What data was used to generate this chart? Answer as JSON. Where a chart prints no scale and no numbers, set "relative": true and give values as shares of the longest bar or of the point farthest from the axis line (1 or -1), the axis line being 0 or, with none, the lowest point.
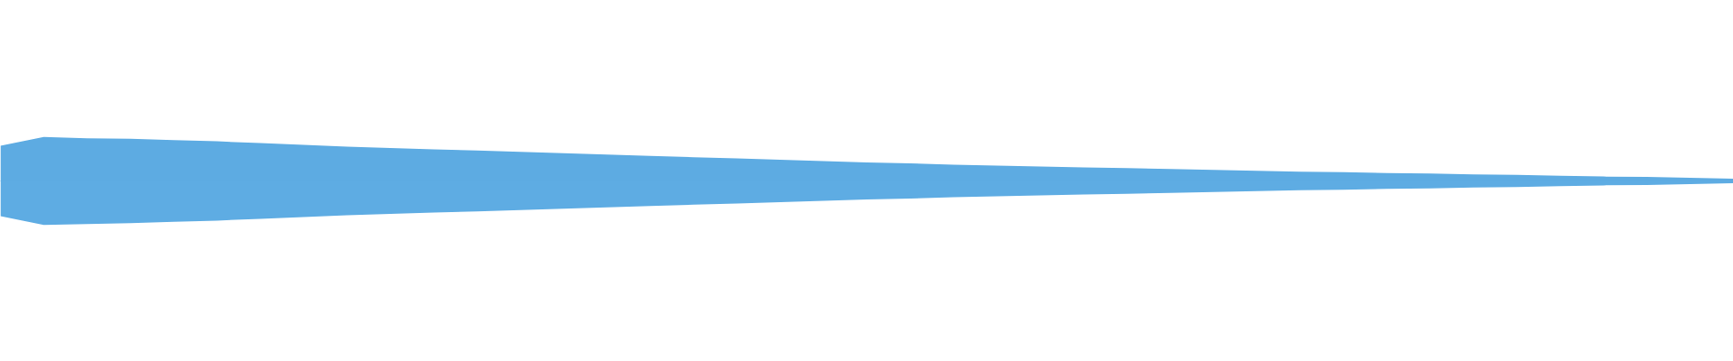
{
  "chart_data": {
    "type": "area",
    "relative": true,
    "ref_lines": [
      {
        "axis": "y",
        "value": 0,
        "color": "#5dabe2"
      }
    ],
    "categories": [
      null,
      null,
      null,
      null,
      null,
      null,
      null,
      null,
      null,
      null,
      null,
      null,
      null,
      null,
      null,
      null,
      null,
      null,
      null,
      null,
      null,
      null,
      null,
      null,
      null,
      null,
      null,
      null,
      null,
      null,
      null,
      null,
      null,
      null,
      null,
      null,
      null,
      null,
      null,
      null,
      null
    ],
    "series": [
      {
        "color": "#5dabe2",
        "values": [
          0.8,
          1.0,
          0.97,
          0.96,
          0.93,
          0.9,
          0.86,
          0.82,
          0.78,
          0.75,
          0.72,
          0.69,
          0.66,
          0.63,
          0.6,
          0.57,
          0.54,
          0.51,
          0.48,
          0.45,
          0.42,
          0.4,
          0.37,
          0.35,
          0.33,
          0.31,
          0.29,
          0.27,
          0.25,
          0.23,
          0.21,
          0.2,
          0.18,
          0.17,
          0.15,
          0.14,
          0.12,
          0.1,
          0.09,
          0.07,
          0.05
        ]
      },
      {
        "color": "#5eace3",
        "values": [
          -0.8,
          -1.0,
          -0.98,
          -0.96,
          -0.93,
          -0.9,
          -0.86,
          -0.82,
          -0.78,
          -0.75,
          -0.72,
          -0.69,
          -0.66,
          -0.63,
          -0.6,
          -0.57,
          -0.54,
          -0.51,
          -0.48,
          -0.45,
          -0.42,
          -0.4,
          -0.37,
          -0.35,
          -0.33,
          -0.31,
          -0.29,
          -0.27,
          -0.25,
          -0.23,
          -0.21,
          -0.2,
          -0.18,
          -0.17,
          -0.15,
          -0.14,
          -0.12,
          -0.1,
          -0.09,
          -0.07,
          -0.05
        ]
      }
    ]
  }
}
